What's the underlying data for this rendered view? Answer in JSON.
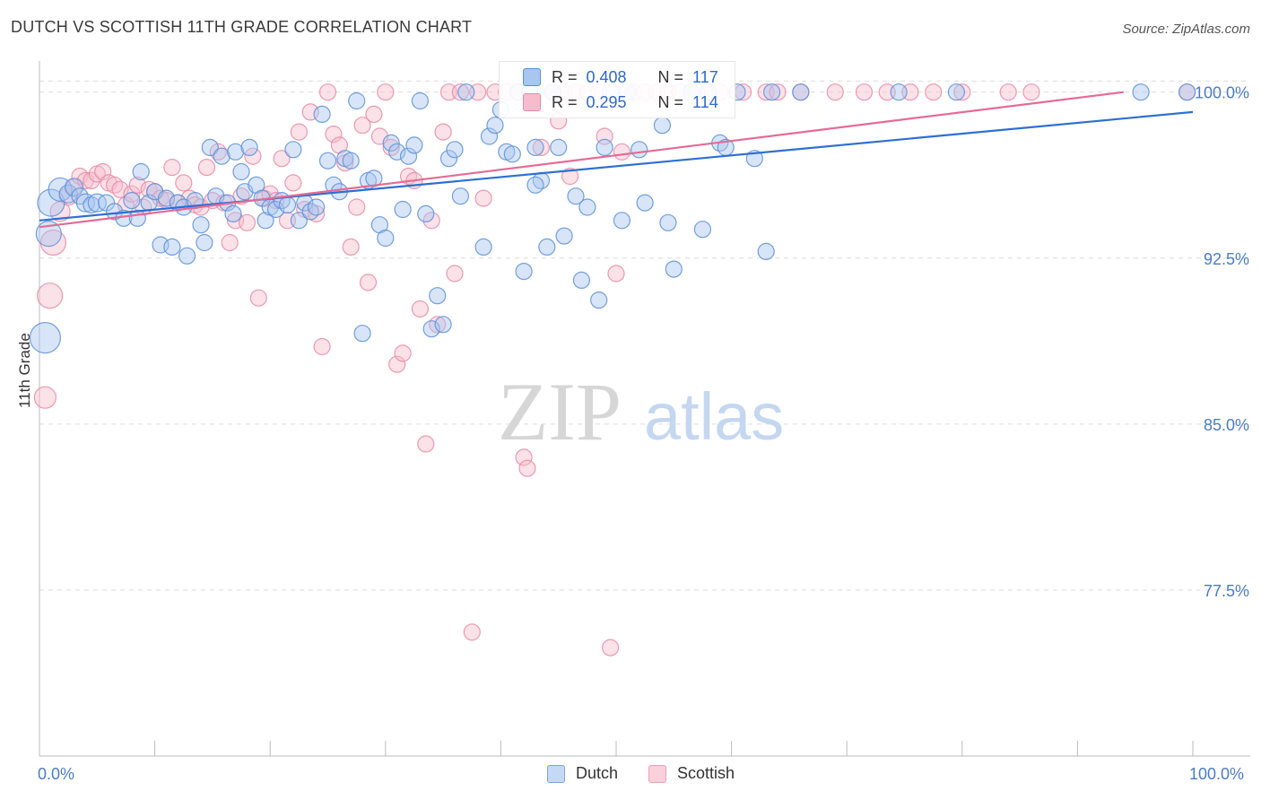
{
  "title": "DUTCH VS SCOTTISH 11TH GRADE CORRELATION CHART",
  "source": "Source: ZipAtlas.com",
  "watermark": {
    "zip": "ZIP",
    "atlas": "atlas"
  },
  "legend_stats": {
    "dutch": {
      "r_label": "R =",
      "r": "0.408",
      "n_label": "N =",
      "n": "117"
    },
    "scottish": {
      "r_label": "R =",
      "r": "0.295",
      "n_label": "N =",
      "n": "114"
    }
  },
  "legend_bottom": {
    "dutch": "Dutch",
    "scottish": "Scottish"
  },
  "colors": {
    "dutch_fill": "#a9c6f0",
    "dutch_stroke": "#5b8fd8",
    "dutch_line": "#2e6fd1",
    "scottish_fill": "#f6bccd",
    "scottish_stroke": "#e889a6",
    "scottish_line": "#e46b96",
    "axis_tick_label": "#4a7cc9",
    "grid": "#dcdcdc"
  },
  "chart_data": {
    "type": "scatter",
    "title": "DUTCH VS SCOTTISH 11TH GRADE CORRELATION CHART",
    "xlabel": "",
    "ylabel": "11th Grade",
    "xlim": [
      0,
      100
    ],
    "ylim": [
      70.0,
      101.0
    ],
    "x_tick_labels": [
      "0.0%",
      "100.0%"
    ],
    "y_ticks": [
      77.5,
      85.0,
      92.5,
      100.0
    ],
    "y_tick_labels": [
      "77.5%",
      "85.0%",
      "92.5%",
      "100.0%"
    ],
    "grid": true,
    "series": [
      {
        "name": "Dutch",
        "r": 0.408,
        "n": 117,
        "trend": {
          "x": [
            0,
            100
          ],
          "y": [
            94.2,
            99.1
          ]
        },
        "points": [
          [
            0.5,
            88.9,
            28
          ],
          [
            0.8,
            93.6,
            22
          ],
          [
            1.0,
            95.0,
            24
          ],
          [
            1.8,
            95.6,
            20
          ],
          [
            2.5,
            95.4,
            14
          ],
          [
            3.0,
            95.7,
            14
          ],
          [
            3.5,
            95.3,
            12
          ],
          [
            4.0,
            95.0,
            14
          ],
          [
            4.5,
            94.9,
            12
          ],
          [
            5.0,
            95.0,
            14
          ],
          [
            5.8,
            95.0,
            12
          ],
          [
            6.5,
            94.6,
            12
          ],
          [
            7.3,
            94.3,
            12
          ],
          [
            8.0,
            95.1,
            12
          ],
          [
            8.5,
            94.3,
            12
          ],
          [
            8.8,
            96.4,
            12
          ],
          [
            9.5,
            95.0,
            12
          ],
          [
            10.0,
            95.5,
            12
          ],
          [
            10.5,
            93.1,
            12
          ],
          [
            11.0,
            95.2,
            12
          ],
          [
            11.5,
            93.0,
            12
          ],
          [
            12.0,
            95.0,
            12
          ],
          [
            12.5,
            94.8,
            12
          ],
          [
            12.8,
            92.6,
            12
          ],
          [
            13.5,
            95.1,
            12
          ],
          [
            14.0,
            94.0,
            12
          ],
          [
            14.3,
            93.2,
            12
          ],
          [
            14.8,
            97.5,
            12
          ],
          [
            15.3,
            95.3,
            12
          ],
          [
            15.8,
            97.1,
            12
          ],
          [
            16.3,
            95.0,
            12
          ],
          [
            16.8,
            94.5,
            12
          ],
          [
            17.0,
            97.3,
            12
          ],
          [
            17.5,
            96.4,
            12
          ],
          [
            17.8,
            95.5,
            12
          ],
          [
            18.2,
            97.5,
            12
          ],
          [
            18.8,
            95.8,
            12
          ],
          [
            19.3,
            95.2,
            12
          ],
          [
            19.6,
            94.2,
            12
          ],
          [
            20.0,
            94.8,
            12
          ],
          [
            20.5,
            94.7,
            12
          ],
          [
            21.0,
            95.1,
            12
          ],
          [
            21.5,
            94.9,
            12
          ],
          [
            22.0,
            97.4,
            12
          ],
          [
            22.5,
            94.2,
            12
          ],
          [
            23.0,
            95.0,
            12
          ],
          [
            23.5,
            94.6,
            12
          ],
          [
            24.0,
            94.8,
            12
          ],
          [
            24.5,
            99.0,
            12
          ],
          [
            25.0,
            96.9,
            12
          ],
          [
            25.5,
            95.8,
            12
          ],
          [
            26.0,
            95.5,
            12
          ],
          [
            26.5,
            97.0,
            12
          ],
          [
            27.0,
            96.9,
            12
          ],
          [
            27.5,
            99.6,
            12
          ],
          [
            28.0,
            89.1,
            12
          ],
          [
            28.5,
            96.0,
            12
          ],
          [
            29.0,
            96.1,
            12
          ],
          [
            29.5,
            94.0,
            12
          ],
          [
            30.0,
            93.4,
            12
          ],
          [
            30.5,
            97.7,
            12
          ],
          [
            31.0,
            97.3,
            12
          ],
          [
            31.5,
            94.7,
            12
          ],
          [
            32.0,
            97.1,
            12
          ],
          [
            32.5,
            97.6,
            12
          ],
          [
            33.0,
            99.6,
            12
          ],
          [
            33.5,
            94.5,
            12
          ],
          [
            34.0,
            89.3,
            12
          ],
          [
            34.5,
            90.8,
            12
          ],
          [
            35.0,
            89.5,
            12
          ],
          [
            35.5,
            97.0,
            12
          ],
          [
            36.0,
            97.4,
            12
          ],
          [
            36.5,
            95.3,
            12
          ],
          [
            37.0,
            100.0,
            12
          ],
          [
            38.5,
            93.0,
            12
          ],
          [
            39.0,
            98.0,
            12
          ],
          [
            39.5,
            98.5,
            12
          ],
          [
            40.0,
            99.2,
            12
          ],
          [
            40.5,
            97.3,
            12
          ],
          [
            41.0,
            97.2,
            12
          ],
          [
            41.5,
            100.0,
            12
          ],
          [
            42.0,
            91.9,
            12
          ],
          [
            42.5,
            100.0,
            12
          ],
          [
            43.0,
            97.5,
            12
          ],
          [
            43.5,
            96.0,
            12
          ],
          [
            44.0,
            93.0,
            12
          ],
          [
            44.5,
            100.0,
            12
          ],
          [
            45.0,
            97.5,
            12
          ],
          [
            45.5,
            93.5,
            12
          ],
          [
            46.5,
            95.3,
            12
          ],
          [
            47.0,
            91.5,
            12
          ],
          [
            47.5,
            94.8,
            12
          ],
          [
            48.5,
            90.6,
            12
          ],
          [
            49.0,
            97.5,
            12
          ],
          [
            49.5,
            100.0,
            12
          ],
          [
            50.5,
            94.2,
            12
          ],
          [
            51.0,
            100.0,
            12
          ],
          [
            52.0,
            97.4,
            12
          ],
          [
            52.5,
            95.0,
            12
          ],
          [
            54.0,
            98.5,
            12
          ],
          [
            54.5,
            94.1,
            12
          ],
          [
            55.0,
            92.0,
            12
          ],
          [
            56.5,
            100.0,
            12
          ],
          [
            57.5,
            93.8,
            12
          ],
          [
            58.0,
            100.0,
            12
          ],
          [
            59.0,
            97.7,
            12
          ],
          [
            59.5,
            97.5,
            12
          ],
          [
            60.5,
            100.0,
            12
          ],
          [
            62.0,
            97.0,
            12
          ],
          [
            63.0,
            92.8,
            12
          ],
          [
            63.5,
            100.0,
            12
          ],
          [
            66.0,
            100.0,
            12
          ],
          [
            74.5,
            100.0,
            12
          ],
          [
            79.5,
            100.0,
            12
          ],
          [
            95.5,
            100.0,
            12
          ],
          [
            99.5,
            100.0,
            12
          ],
          [
            43.0,
            95.8,
            12
          ]
        ]
      },
      {
        "name": "Scottish",
        "r": 0.295,
        "n": 114,
        "trend": {
          "x": [
            0,
            94
          ],
          "y": [
            93.9,
            100.0
          ]
        },
        "points": [
          [
            0.5,
            86.2,
            18
          ],
          [
            0.9,
            90.8,
            22
          ],
          [
            1.2,
            93.2,
            22
          ],
          [
            1.8,
            94.6,
            16
          ],
          [
            2.5,
            95.3,
            14
          ],
          [
            3.0,
            95.7,
            12
          ],
          [
            3.5,
            96.2,
            12
          ],
          [
            4.0,
            96.0,
            12
          ],
          [
            4.5,
            96.0,
            12
          ],
          [
            5.0,
            96.3,
            12
          ],
          [
            5.5,
            96.4,
            12
          ],
          [
            6.0,
            95.9,
            12
          ],
          [
            6.5,
            95.8,
            12
          ],
          [
            7.0,
            95.6,
            12
          ],
          [
            7.5,
            94.9,
            12
          ],
          [
            8.0,
            95.4,
            12
          ],
          [
            8.5,
            95.8,
            12
          ],
          [
            9.0,
            94.8,
            12
          ],
          [
            9.5,
            95.6,
            12
          ],
          [
            10.0,
            95.5,
            12
          ],
          [
            10.5,
            95.2,
            12
          ],
          [
            11.0,
            95.1,
            12
          ],
          [
            11.5,
            96.6,
            12
          ],
          [
            12.0,
            95.0,
            12
          ],
          [
            12.5,
            95.9,
            12
          ],
          [
            13.0,
            95.2,
            12
          ],
          [
            13.5,
            94.9,
            12
          ],
          [
            14.0,
            94.8,
            12
          ],
          [
            14.5,
            96.6,
            12
          ],
          [
            15.0,
            95.1,
            12
          ],
          [
            15.5,
            97.3,
            12
          ],
          [
            16.0,
            95.0,
            12
          ],
          [
            16.5,
            93.2,
            12
          ],
          [
            17.0,
            94.2,
            12
          ],
          [
            17.5,
            95.3,
            12
          ],
          [
            18.0,
            94.1,
            12
          ],
          [
            18.5,
            97.1,
            12
          ],
          [
            19.0,
            90.7,
            12
          ],
          [
            19.5,
            95.2,
            12
          ],
          [
            20.0,
            95.4,
            12
          ],
          [
            20.5,
            95.1,
            12
          ],
          [
            21.0,
            97.0,
            12
          ],
          [
            21.5,
            94.2,
            12
          ],
          [
            22.0,
            95.9,
            12
          ],
          [
            22.5,
            98.2,
            12
          ],
          [
            23.0,
            94.7,
            12
          ],
          [
            23.5,
            99.1,
            12
          ],
          [
            24.0,
            94.5,
            12
          ],
          [
            24.5,
            88.5,
            12
          ],
          [
            25.0,
            100.0,
            12
          ],
          [
            25.5,
            98.1,
            12
          ],
          [
            26.0,
            97.6,
            12
          ],
          [
            26.5,
            96.8,
            12
          ],
          [
            27.0,
            93.0,
            12
          ],
          [
            27.5,
            94.8,
            12
          ],
          [
            28.0,
            98.5,
            12
          ],
          [
            28.5,
            91.4,
            12
          ],
          [
            29.0,
            99.0,
            12
          ],
          [
            29.5,
            98.0,
            12
          ],
          [
            30.0,
            100.0,
            12
          ],
          [
            30.5,
            97.5,
            12
          ],
          [
            31.0,
            87.7,
            12
          ],
          [
            31.5,
            88.2,
            12
          ],
          [
            32.0,
            96.2,
            12
          ],
          [
            32.5,
            96.0,
            12
          ],
          [
            33.0,
            90.2,
            12
          ],
          [
            33.5,
            84.1,
            12
          ],
          [
            34.0,
            94.2,
            12
          ],
          [
            34.5,
            89.5,
            12
          ],
          [
            35.0,
            98.2,
            12
          ],
          [
            35.5,
            100.0,
            12
          ],
          [
            36.0,
            91.8,
            12
          ],
          [
            36.5,
            100.0,
            12
          ],
          [
            37.5,
            75.6,
            12
          ],
          [
            38.0,
            100.0,
            12
          ],
          [
            38.5,
            95.2,
            12
          ],
          [
            39.5,
            100.0,
            12
          ],
          [
            40.5,
            100.0,
            12
          ],
          [
            41.5,
            100.0,
            12
          ],
          [
            42.0,
            83.5,
            12
          ],
          [
            42.3,
            83.0,
            12
          ],
          [
            42.8,
            100.0,
            12
          ],
          [
            43.5,
            97.5,
            12
          ],
          [
            44.5,
            100.0,
            12
          ],
          [
            45.0,
            98.7,
            12
          ],
          [
            45.5,
            100.0,
            12
          ],
          [
            46.0,
            96.2,
            12
          ],
          [
            46.5,
            100.0,
            12
          ],
          [
            47.5,
            100.0,
            12
          ],
          [
            48.5,
            100.0,
            12
          ],
          [
            49.0,
            98.0,
            12
          ],
          [
            49.5,
            74.9,
            12
          ],
          [
            50.0,
            91.8,
            12
          ],
          [
            50.5,
            97.3,
            12
          ],
          [
            51.5,
            100.0,
            12
          ],
          [
            52.5,
            100.0,
            12
          ],
          [
            53.5,
            100.0,
            12
          ],
          [
            54.5,
            100.0,
            12
          ],
          [
            55.5,
            100.0,
            12
          ],
          [
            57.0,
            100.0,
            12
          ],
          [
            59.0,
            100.0,
            12
          ],
          [
            61.0,
            100.0,
            12
          ],
          [
            63.0,
            100.0,
            12
          ],
          [
            64.0,
            100.0,
            12
          ],
          [
            66.0,
            100.0,
            12
          ],
          [
            69.0,
            100.0,
            12
          ],
          [
            71.5,
            100.0,
            12
          ],
          [
            73.5,
            100.0,
            12
          ],
          [
            75.5,
            100.0,
            12
          ],
          [
            77.5,
            100.0,
            12
          ],
          [
            80.0,
            100.0,
            12
          ],
          [
            84.0,
            100.0,
            12
          ],
          [
            86.0,
            100.0,
            12
          ],
          [
            99.5,
            100.0,
            12
          ]
        ]
      }
    ]
  }
}
